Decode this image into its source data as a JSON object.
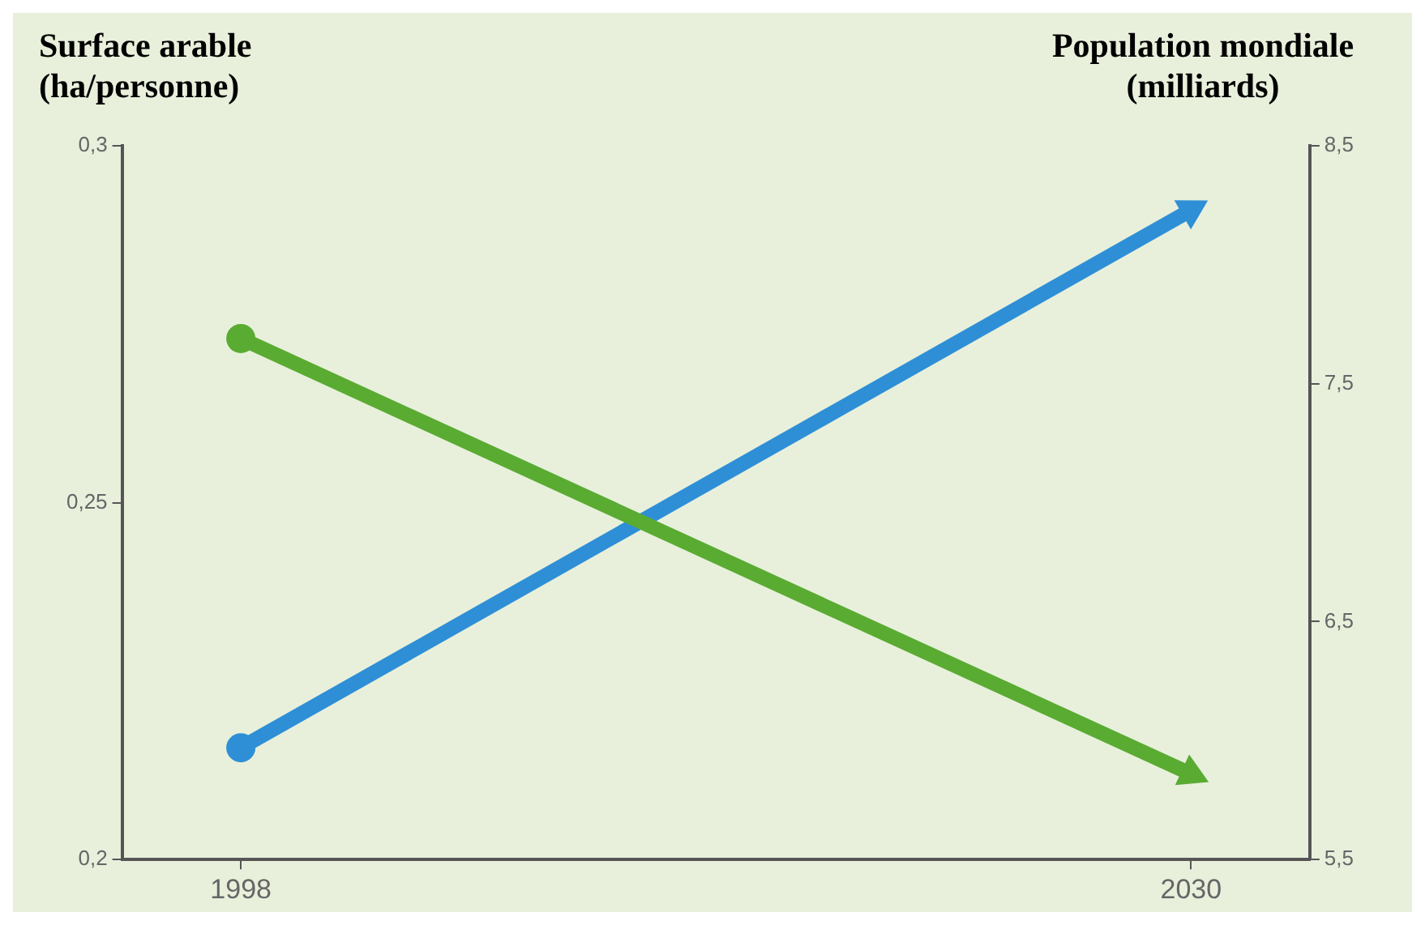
{
  "chart_data": {
    "type": "line",
    "ylabel": "Surface arable (ha/personne)",
    "y2label": "Population mondiale (milliards)",
    "xlim": [
      1994,
      2034
    ],
    "xticks": [
      1998,
      2030
    ],
    "x": [
      1998,
      2030
    ],
    "ylim": [
      0.2,
      0.3
    ],
    "yticks": [
      {
        "value": 0.2,
        "label": "0,2"
      },
      {
        "value": 0.25,
        "label": "0,25"
      },
      {
        "value": 0.3,
        "label": "0,3"
      }
    ],
    "y2lim": [
      5.5,
      8.5
    ],
    "y2ticks": [
      {
        "value": 5.5,
        "label": "5,5"
      },
      {
        "value": 6.5,
        "label": "6,5"
      },
      {
        "value": 7.5,
        "label": "7,5"
      },
      {
        "value": 8.5,
        "label": "8,5"
      }
    ],
    "series": [
      {
        "color": "#5aab32",
        "values": [
          0.273,
          0.212
        ]
      },
      {
        "color": "#2e8fd6",
        "values": [
          5.97,
          8.23
        ],
        "axis": "y2"
      }
    ],
    "marker": "circle",
    "line_style": "solid",
    "grid": false,
    "legend": false
  }
}
